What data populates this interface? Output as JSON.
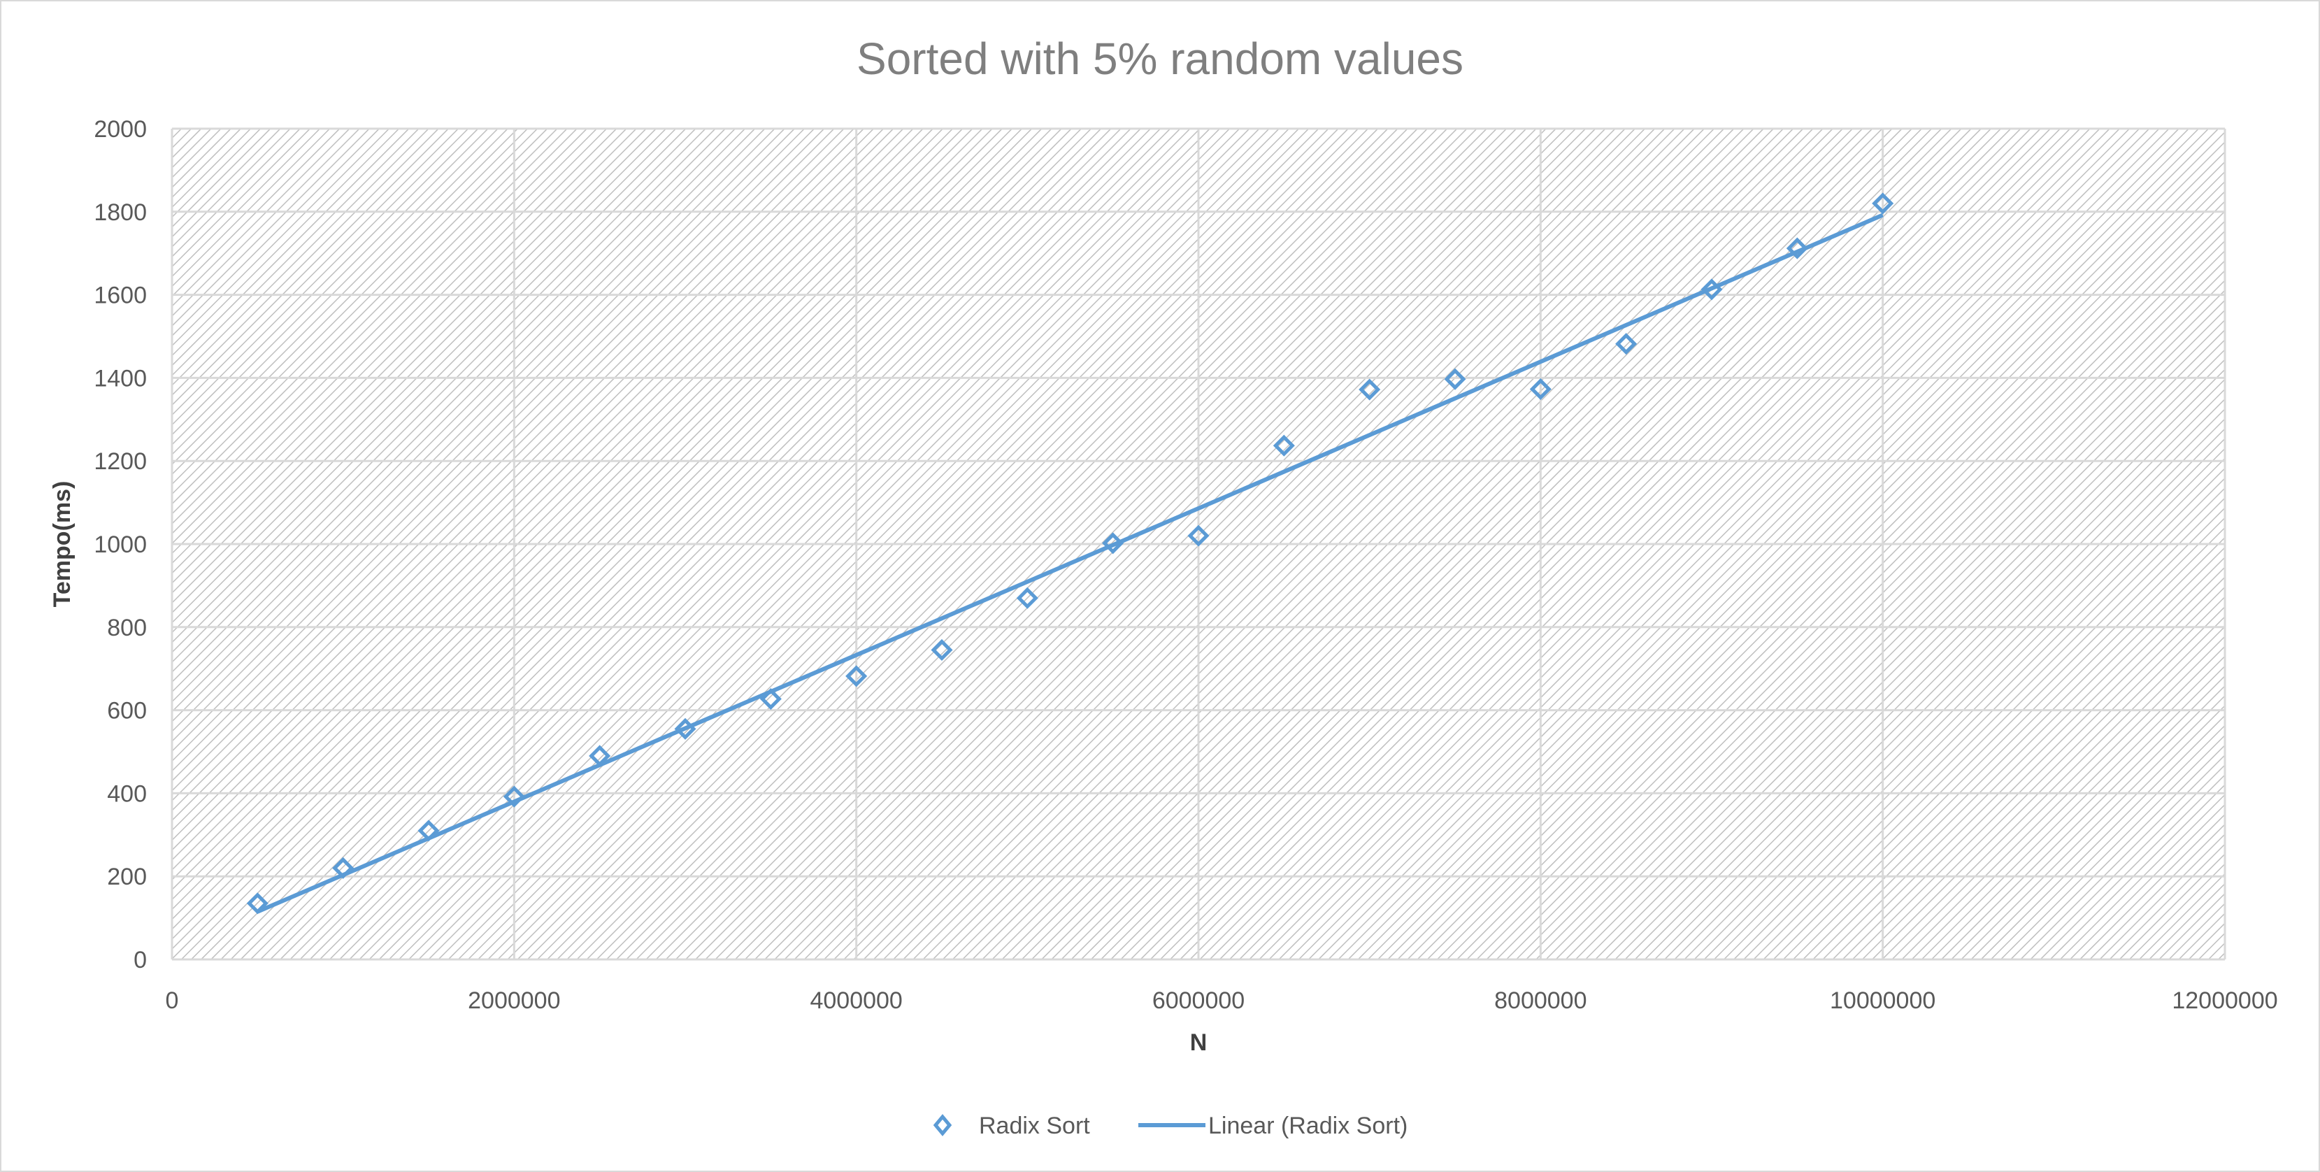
{
  "chart_data": {
    "type": "scatter",
    "title": "Sorted with 5% random values",
    "xlabel": "N",
    "ylabel": "Tempo(ms)",
    "xlim": [
      0,
      12000000
    ],
    "ylim": [
      0,
      2000
    ],
    "xticks": [
      "0",
      "2000000",
      "4000000",
      "6000000",
      "8000000",
      "10000000",
      "12000000"
    ],
    "yticks": [
      "0",
      "200",
      "400",
      "600",
      "800",
      "1000",
      "1200",
      "1400",
      "1600",
      "1800",
      "2000"
    ],
    "grid": true,
    "plot_fill": "diagonal hatch",
    "legend_position": "bottom",
    "colors": {
      "series": "#5b9bd5",
      "trend": "#5b9bd5"
    },
    "series": [
      {
        "name": "Radix Sort",
        "marker": "diamond",
        "x": [
          500000,
          1000000,
          1500000,
          2000000,
          2500000,
          3000000,
          3500000,
          4000000,
          4500000,
          5000000,
          5500000,
          6000000,
          6500000,
          7000000,
          7500000,
          8000000,
          8500000,
          9000000,
          9500000,
          10000000
        ],
        "y": [
          135,
          220,
          310,
          392,
          490,
          555,
          627,
          682,
          745,
          870,
          1002,
          1020,
          1237,
          1372,
          1397,
          1373,
          1482,
          1613,
          1712,
          1820
        ]
      }
    ],
    "trendline": {
      "name": "Linear (Radix Sort)",
      "type": "linear",
      "x": [
        500000,
        10000000
      ],
      "y": [
        115,
        1792
      ]
    }
  }
}
